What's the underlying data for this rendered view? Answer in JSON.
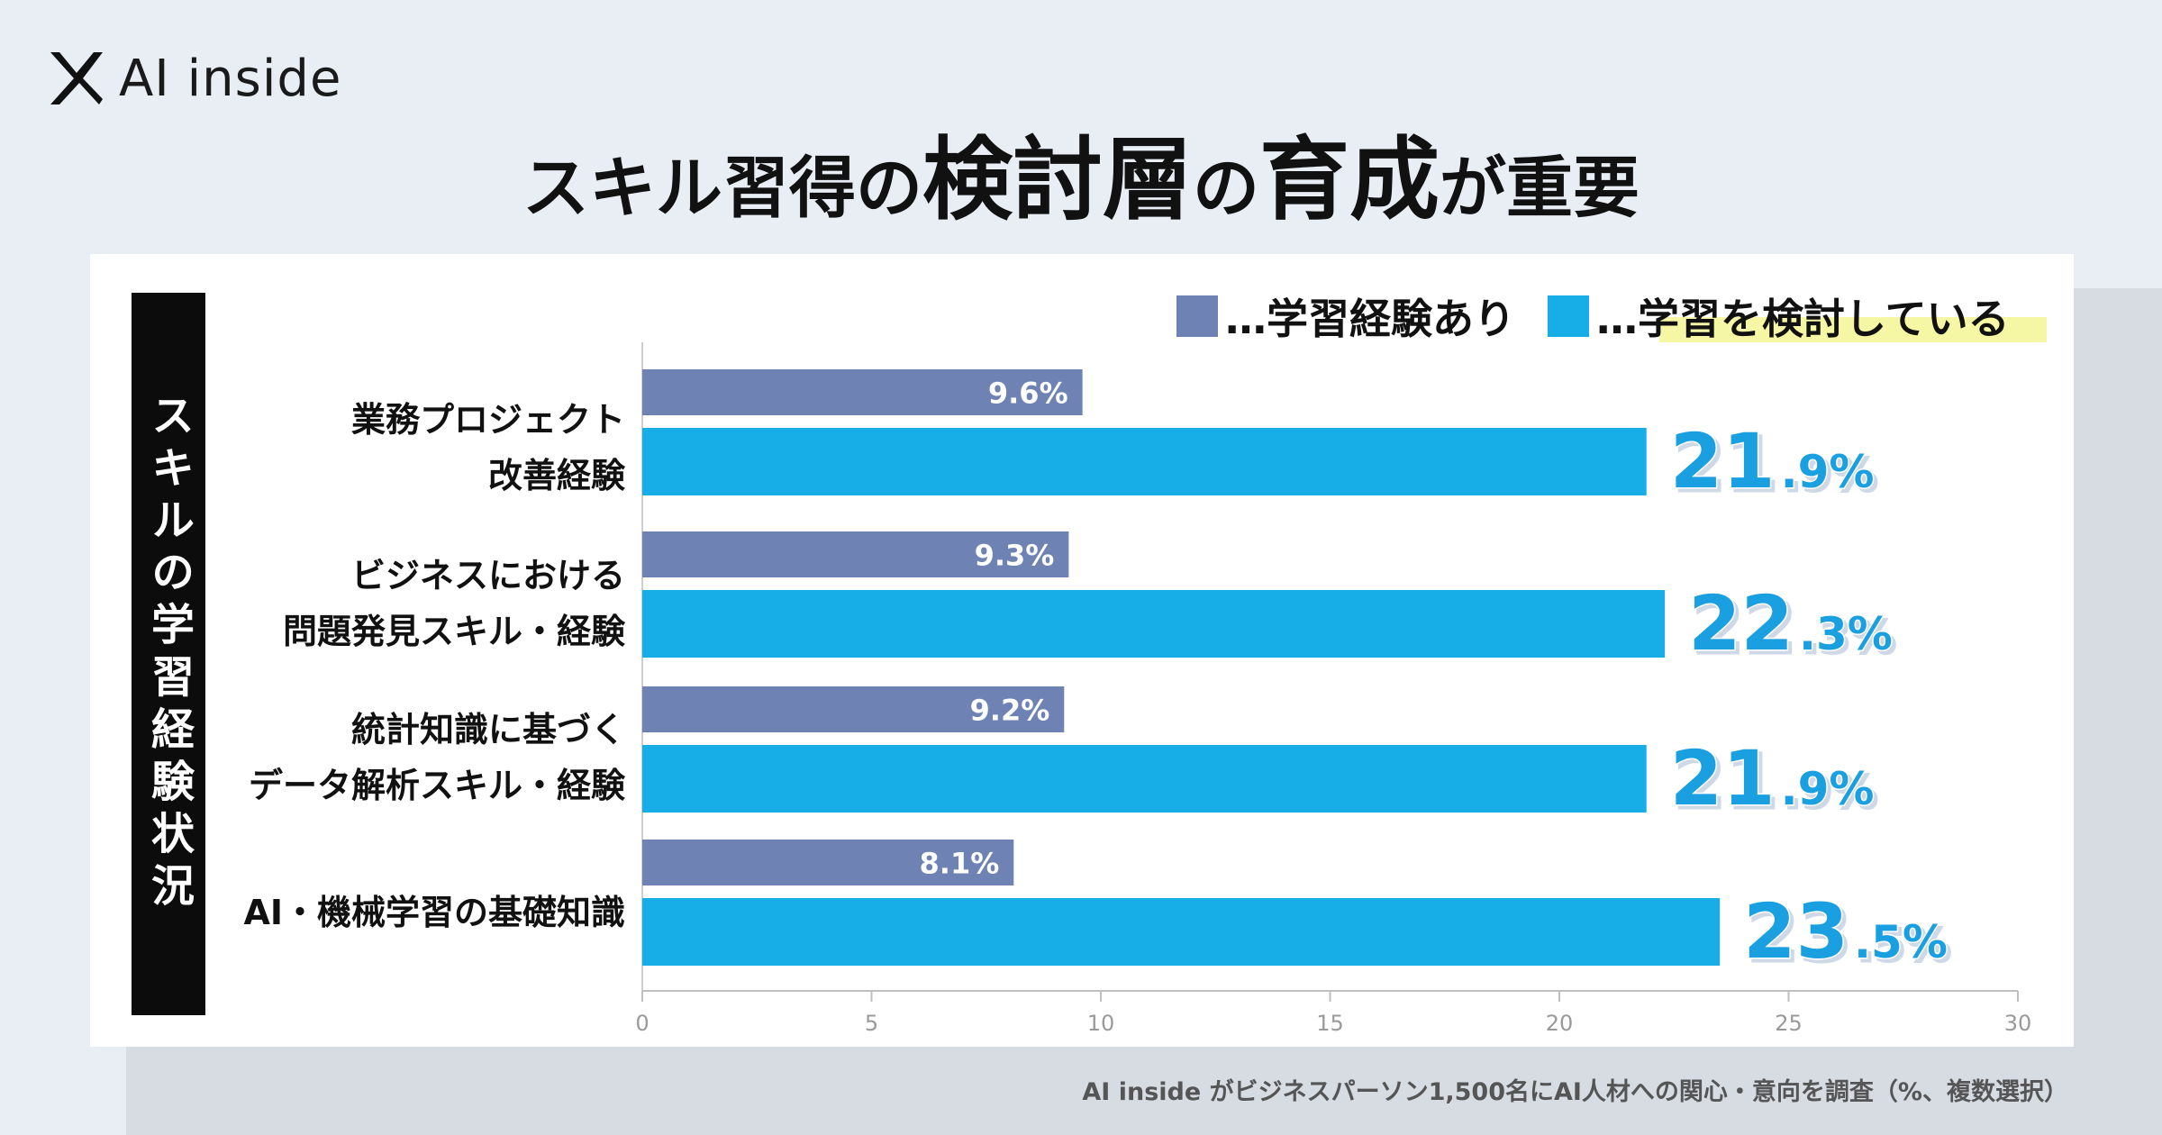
{
  "logo": {
    "text": "AI inside"
  },
  "headline": {
    "part1": "スキル習得の",
    "part2": "検討層",
    "part3": "の",
    "part4": "育成",
    "part5": "が重要"
  },
  "side_label": "スキルの学習経験状況",
  "footer": "AI inside がビジネスパーソン1,500名にAI人材への関心・意向を調査（%、複数選択）",
  "colors": {
    "experienced": "#6e82b4",
    "considering": "#17ade6",
    "value_text": "#1a9fe0"
  },
  "chart_data": {
    "type": "bar",
    "orientation": "horizontal",
    "categories": [
      [
        "業務プロジェクト",
        "改善経験"
      ],
      [
        "ビジネスにおける",
        "問題発見スキル・経験"
      ],
      [
        "統計知識に基づく",
        "データ解析スキル・経験"
      ],
      [
        "AI・機械学習の基礎知識"
      ]
    ],
    "series": [
      {
        "name": "…学習経験あり",
        "values": [
          9.6,
          9.3,
          9.2,
          8.1
        ],
        "labels": [
          "9.6%",
          "9.3%",
          "9.2%",
          "8.1%"
        ]
      },
      {
        "name": "…学習を検討している",
        "values": [
          21.9,
          22.3,
          21.9,
          23.5
        ],
        "label_int": [
          "21",
          "22",
          "21",
          "23"
        ],
        "label_dec": [
          ".9%",
          ".3%",
          ".9%",
          ".5%"
        ]
      }
    ],
    "xlim": [
      0,
      30
    ],
    "xticks": [
      "0",
      "5",
      "10",
      "15",
      "20",
      "25",
      "30"
    ]
  }
}
